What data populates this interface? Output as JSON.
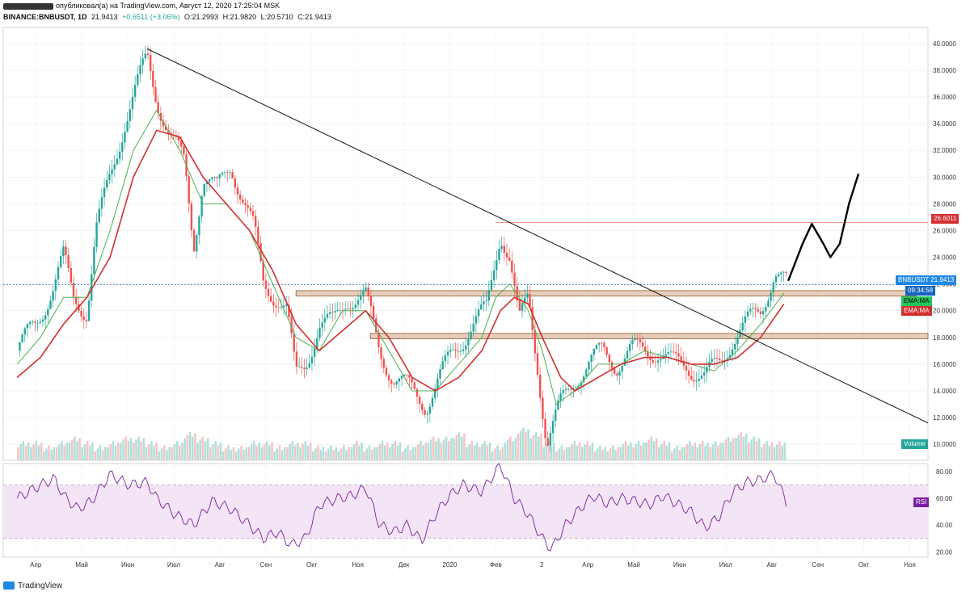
{
  "header": {
    "publish_line": "опубликовал(а) на TradingView.com, Август 12, 2020 17:25:04 MSK",
    "symbol_line": {
      "symbol": "BINANCE:BNBUSDT, 1D",
      "last": "21.9413",
      "change": "+0.6511 (+3.06%)",
      "open": "O:21.2993",
      "high": "H:21.9820",
      "low": "L:20.5710",
      "close": "C:21.9413"
    }
  },
  "badges": {
    "resistance": "26.6011",
    "symbol": "BNBUSDT",
    "price": "21.9413",
    "countdown": "09:34:58",
    "ema_green": "EMA:MA",
    "ema_red": "EMA:MA",
    "volume": "Volume",
    "rsi": "RSI"
  },
  "footer": {
    "brand": "TradingView"
  },
  "colors": {
    "up": "#26a69a",
    "down": "#ef5350",
    "ema_fast": "#4caf50",
    "ema_slow": "#d32f2f",
    "rsi": "#7b1fa2",
    "rsi_band": "#f3e5f5",
    "support": "#c8956b",
    "resistance": "#e57373",
    "price_line": "#1565c0"
  },
  "chart_data": [
    {
      "type": "line",
      "name": "price",
      "y_ticks": [
        10,
        12,
        14,
        16,
        18,
        20,
        22,
        24,
        26,
        28,
        30,
        32,
        34,
        36,
        38,
        40
      ],
      "y_tick_labels": [
        "10.0000",
        "12.0000",
        "14.0000",
        "16.0000",
        "18.0000",
        "20.0000",
        "22.0000",
        "24.0000",
        "26.0000",
        "28.0000",
        "30.0000",
        "32.0000",
        "34.0000",
        "36.0000",
        "38.0000",
        "40.0000"
      ],
      "ylim": [
        8.8,
        41.2
      ],
      "x_labels": [
        "Апр",
        "Май",
        "Июн",
        "Июл",
        "Авг",
        "Сен",
        "Окт",
        "Ноя",
        "Дек",
        "2020",
        "Фев",
        "2",
        "Апр",
        "Май",
        "Июн",
        "Июл",
        "Авг",
        "Сен",
        "Окт",
        "Ноя"
      ],
      "x_label_positions": [
        0,
        1,
        2,
        3,
        4,
        5,
        6,
        7,
        8,
        9,
        10,
        11,
        12,
        13,
        14,
        15,
        16,
        17,
        18,
        19
      ],
      "close_path": [
        [
          0,
          17
        ],
        [
          0.4,
          19
        ],
        [
          0.8,
          22
        ],
        [
          1.0,
          24
        ],
        [
          1.2,
          21
        ],
        [
          1.5,
          20
        ],
        [
          1.7,
          26
        ],
        [
          2.0,
          30
        ],
        [
          2.3,
          34
        ],
        [
          2.6,
          37
        ],
        [
          2.8,
          39
        ],
        [
          3.0,
          36
        ],
        [
          3.3,
          33
        ],
        [
          3.6,
          31
        ],
        [
          3.8,
          25
        ],
        [
          4.0,
          30
        ],
        [
          4.3,
          29
        ],
        [
          4.6,
          31
        ],
        [
          4.9,
          28
        ],
        [
          5.1,
          26
        ],
        [
          5.3,
          22
        ],
        [
          5.6,
          21
        ],
        [
          5.8,
          20
        ],
        [
          6.0,
          15
        ],
        [
          6.2,
          16
        ],
        [
          6.5,
          19
        ],
        [
          6.8,
          19
        ],
        [
          7.1,
          21
        ],
        [
          7.5,
          21
        ],
        [
          7.8,
          17
        ],
        [
          8.1,
          15
        ],
        [
          8.5,
          14
        ],
        [
          8.8,
          13
        ],
        [
          9.1,
          15
        ],
        [
          9.4,
          17
        ],
        [
          9.8,
          19
        ],
        [
          10.1,
          20
        ],
        [
          10.4,
          26
        ],
        [
          10.6,
          24
        ],
        [
          10.8,
          19
        ],
        [
          11.0,
          21
        ],
        [
          11.2,
          16
        ],
        [
          11.4,
          10
        ],
        [
          11.7,
          13
        ],
        [
          12.0,
          15
        ],
        [
          12.3,
          16
        ],
        [
          12.6,
          17
        ],
        [
          12.9,
          16
        ],
        [
          13.2,
          17
        ],
        [
          13.5,
          17
        ],
        [
          13.8,
          17
        ],
        [
          14.1,
          16
        ],
        [
          14.4,
          16
        ],
        [
          14.8,
          15
        ],
        [
          15.1,
          16
        ],
        [
          15.4,
          18
        ],
        [
          15.7,
          19
        ],
        [
          16.0,
          20
        ],
        [
          16.3,
          23
        ],
        [
          16.55,
          21.94
        ]
      ],
      "ema_fast_path": [
        [
          0,
          16
        ],
        [
          0.5,
          18
        ],
        [
          1.0,
          21
        ],
        [
          1.5,
          21
        ],
        [
          2.0,
          26
        ],
        [
          2.5,
          32
        ],
        [
          3.0,
          35
        ],
        [
          3.5,
          32
        ],
        [
          4.0,
          28
        ],
        [
          4.5,
          28
        ],
        [
          5.0,
          26
        ],
        [
          5.5,
          22
        ],
        [
          6.0,
          18
        ],
        [
          6.5,
          17
        ],
        [
          7.0,
          20
        ],
        [
          7.5,
          20
        ],
        [
          8.0,
          17
        ],
        [
          8.5,
          14
        ],
        [
          9.0,
          14
        ],
        [
          9.5,
          16
        ],
        [
          10.0,
          18
        ],
        [
          10.3,
          21
        ],
        [
          10.6,
          22
        ],
        [
          11.0,
          20
        ],
        [
          11.3,
          17
        ],
        [
          11.6,
          13
        ],
        [
          12.0,
          14
        ],
        [
          12.5,
          16
        ],
        [
          13.0,
          16
        ],
        [
          13.5,
          17
        ],
        [
          14.0,
          16.5
        ],
        [
          14.5,
          16
        ],
        [
          15.0,
          15.5
        ],
        [
          15.5,
          17
        ],
        [
          16.0,
          19
        ],
        [
          16.5,
          21.3
        ]
      ],
      "ema_slow_path": [
        [
          0,
          15
        ],
        [
          0.5,
          16.5
        ],
        [
          1.0,
          19
        ],
        [
          1.5,
          21
        ],
        [
          2.0,
          24
        ],
        [
          2.5,
          30
        ],
        [
          3.0,
          33.5
        ],
        [
          3.5,
          33
        ],
        [
          4.0,
          30
        ],
        [
          4.5,
          28
        ],
        [
          5.0,
          26
        ],
        [
          5.5,
          23
        ],
        [
          6.0,
          19
        ],
        [
          6.5,
          17
        ],
        [
          7.0,
          18.5
        ],
        [
          7.5,
          20
        ],
        [
          8.0,
          18
        ],
        [
          8.5,
          15
        ],
        [
          9.0,
          14
        ],
        [
          9.5,
          15
        ],
        [
          10.0,
          17
        ],
        [
          10.4,
          20
        ],
        [
          10.7,
          21
        ],
        [
          11.0,
          20.5
        ],
        [
          11.3,
          18
        ],
        [
          11.7,
          15
        ],
        [
          12.0,
          14
        ],
        [
          12.5,
          15
        ],
        [
          13.0,
          16
        ],
        [
          13.5,
          16.5
        ],
        [
          14.0,
          16.5
        ],
        [
          14.5,
          16
        ],
        [
          15.0,
          16
        ],
        [
          15.5,
          16.5
        ],
        [
          16.0,
          18
        ],
        [
          16.5,
          20.5
        ]
      ],
      "trendline": [
        [
          2.8,
          39.6
        ],
        [
          19.6,
          11.6
        ]
      ],
      "support_bands": [
        [
          21.1,
          21.5
        ],
        [
          17.9,
          18.3
        ]
      ],
      "support_band_x": [
        [
          6.0,
          19.35
        ],
        [
          7.6,
          19.6
        ]
      ],
      "resistance_level": 26.6011,
      "resistance_x": [
        10.3,
        19.6
      ],
      "current_price": 21.9413,
      "projection_path": [
        [
          16.6,
          22.3
        ],
        [
          16.9,
          25.0
        ],
        [
          17.1,
          26.5
        ],
        [
          17.35,
          25.0
        ],
        [
          17.5,
          24.0
        ],
        [
          17.7,
          25.0
        ],
        [
          17.9,
          28.0
        ],
        [
          18.1,
          30.2
        ]
      ],
      "volume_profile": [
        3,
        3,
        2,
        3,
        4,
        3,
        2,
        3,
        4,
        4,
        3,
        2,
        3,
        5,
        4,
        3,
        2,
        2,
        3,
        3,
        2,
        3,
        3,
        2,
        2,
        2,
        3,
        2,
        3,
        3,
        2,
        3,
        4,
        4,
        5,
        3,
        3,
        2,
        4,
        6,
        5,
        3,
        2,
        3,
        3,
        2,
        2,
        3,
        3,
        4,
        3,
        2,
        3,
        3,
        3,
        4,
        5,
        4,
        3,
        3
      ]
    },
    {
      "type": "line",
      "name": "RSI",
      "y_ticks": [
        20,
        40,
        60,
        80
      ],
      "y_tick_labels": [
        "20.00",
        "40.00",
        "60.00",
        "80.00"
      ],
      "ylim": [
        16,
        86
      ],
      "bands": [
        30,
        70
      ],
      "rsi_path": [
        [
          0,
          60
        ],
        [
          0.4,
          68
        ],
        [
          0.8,
          75
        ],
        [
          1.0,
          62
        ],
        [
          1.3,
          52
        ],
        [
          1.6,
          58
        ],
        [
          2.0,
          78
        ],
        [
          2.4,
          70
        ],
        [
          2.8,
          72
        ],
        [
          3.0,
          60
        ],
        [
          3.4,
          48
        ],
        [
          3.8,
          40
        ],
        [
          4.2,
          58
        ],
        [
          4.6,
          52
        ],
        [
          5.0,
          40
        ],
        [
          5.3,
          30
        ],
        [
          5.6,
          35
        ],
        [
          5.9,
          25
        ],
        [
          6.2,
          30
        ],
        [
          6.5,
          55
        ],
        [
          6.9,
          60
        ],
        [
          7.2,
          62
        ],
        [
          7.5,
          68
        ],
        [
          7.8,
          40
        ],
        [
          8.1,
          35
        ],
        [
          8.4,
          40
        ],
        [
          8.7,
          28
        ],
        [
          9.0,
          48
        ],
        [
          9.3,
          62
        ],
        [
          9.6,
          70
        ],
        [
          10.0,
          65
        ],
        [
          10.4,
          85
        ],
        [
          10.7,
          60
        ],
        [
          11.0,
          48
        ],
        [
          11.3,
          30
        ],
        [
          11.5,
          22
        ],
        [
          11.8,
          40
        ],
        [
          12.1,
          52
        ],
        [
          12.4,
          62
        ],
        [
          12.7,
          56
        ],
        [
          13.0,
          60
        ],
        [
          13.3,
          58
        ],
        [
          13.6,
          55
        ],
        [
          13.9,
          62
        ],
        [
          14.2,
          56
        ],
        [
          14.5,
          50
        ],
        [
          14.8,
          38
        ],
        [
          15.1,
          46
        ],
        [
          15.4,
          65
        ],
        [
          15.7,
          72
        ],
        [
          16.0,
          74
        ],
        [
          16.3,
          78
        ],
        [
          16.55,
          57
        ]
      ]
    }
  ]
}
